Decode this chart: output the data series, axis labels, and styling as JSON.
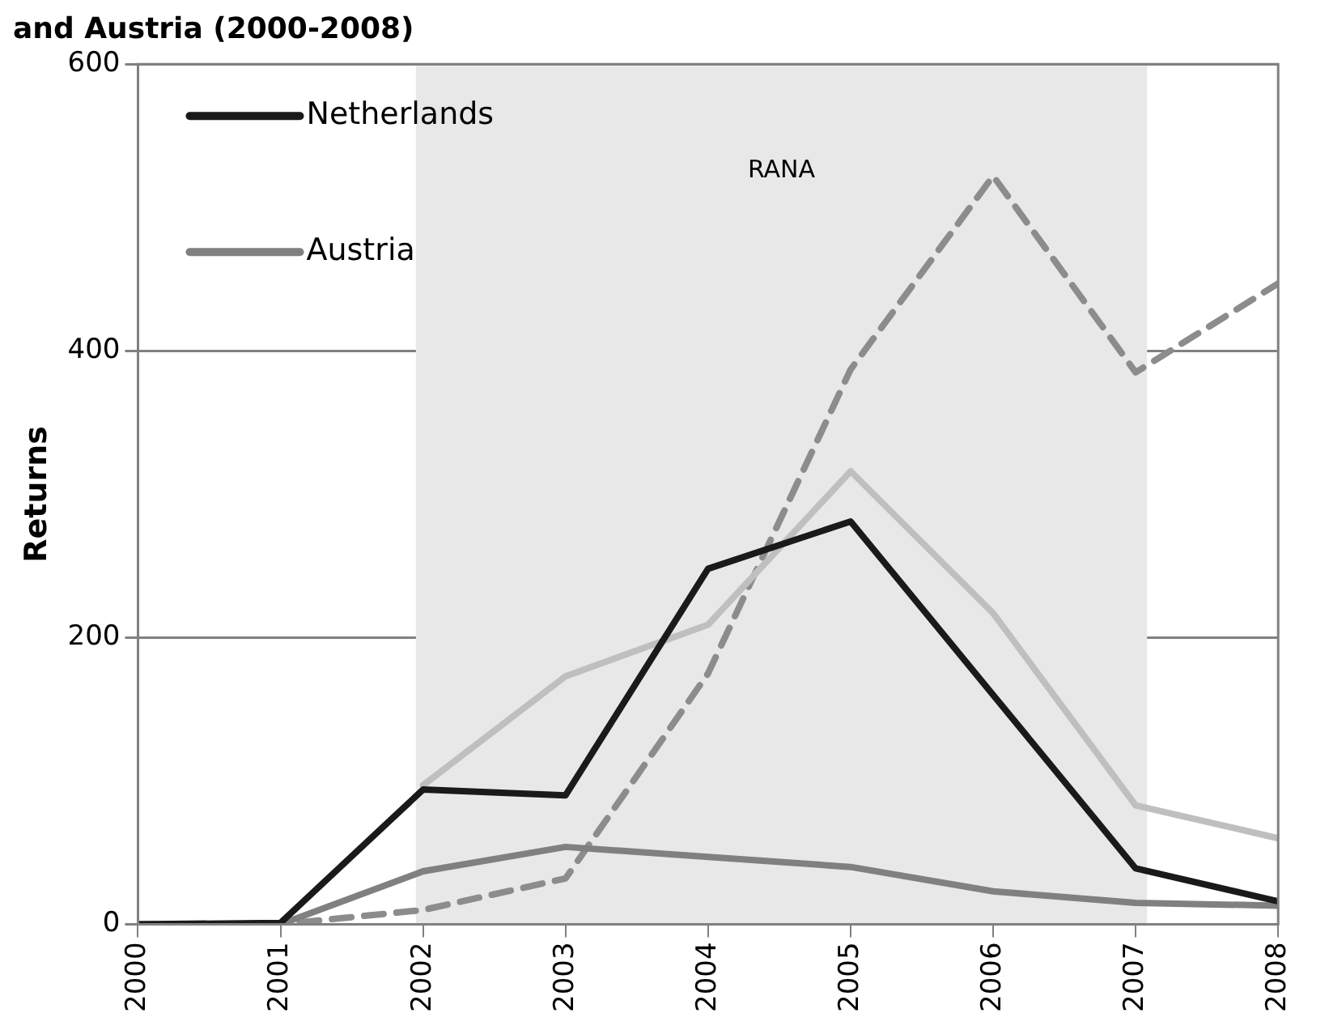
{
  "chart_data": {
    "type": "line",
    "title": "and Austria (2000-2008)",
    "ylabel": "Returns",
    "x": [
      2000,
      2001,
      2002,
      2003,
      2004,
      2005,
      2006,
      2007,
      2008
    ],
    "xlim": [
      2000,
      2008
    ],
    "xticks": [
      2000,
      2001,
      2002,
      2003,
      2004,
      2005,
      2006,
      2007,
      2008
    ],
    "ylim": [
      0,
      600
    ],
    "yticks": [
      0,
      200,
      400,
      600
    ],
    "grid": "y",
    "legend": "top left",
    "marker": "none",
    "series": [
      {
        "name": "Netherlands",
        "color": "#1a1a1a",
        "values": [
          0,
          1,
          94,
          90,
          248,
          281,
          160,
          39,
          16
        ]
      },
      {
        "name": "Austria",
        "color": "#808080",
        "values": [
          0,
          0,
          37,
          54,
          47,
          40,
          23,
          15,
          13
        ]
      },
      {
        "color": "#bfbfbf",
        "values": [
          null,
          null,
          97,
          173,
          209,
          316,
          217,
          83,
          60
        ]
      },
      {
        "color": "#8c8c8c",
        "line_style": "dashed",
        "values": [
          0,
          0,
          10,
          32,
          175,
          387,
          522,
          385,
          447
        ]
      }
    ],
    "bands": [
      {
        "axis": "x",
        "from": 2001.95,
        "to": 2007.08,
        "label": "RANA",
        "color": "#e8e8e8"
      }
    ]
  }
}
